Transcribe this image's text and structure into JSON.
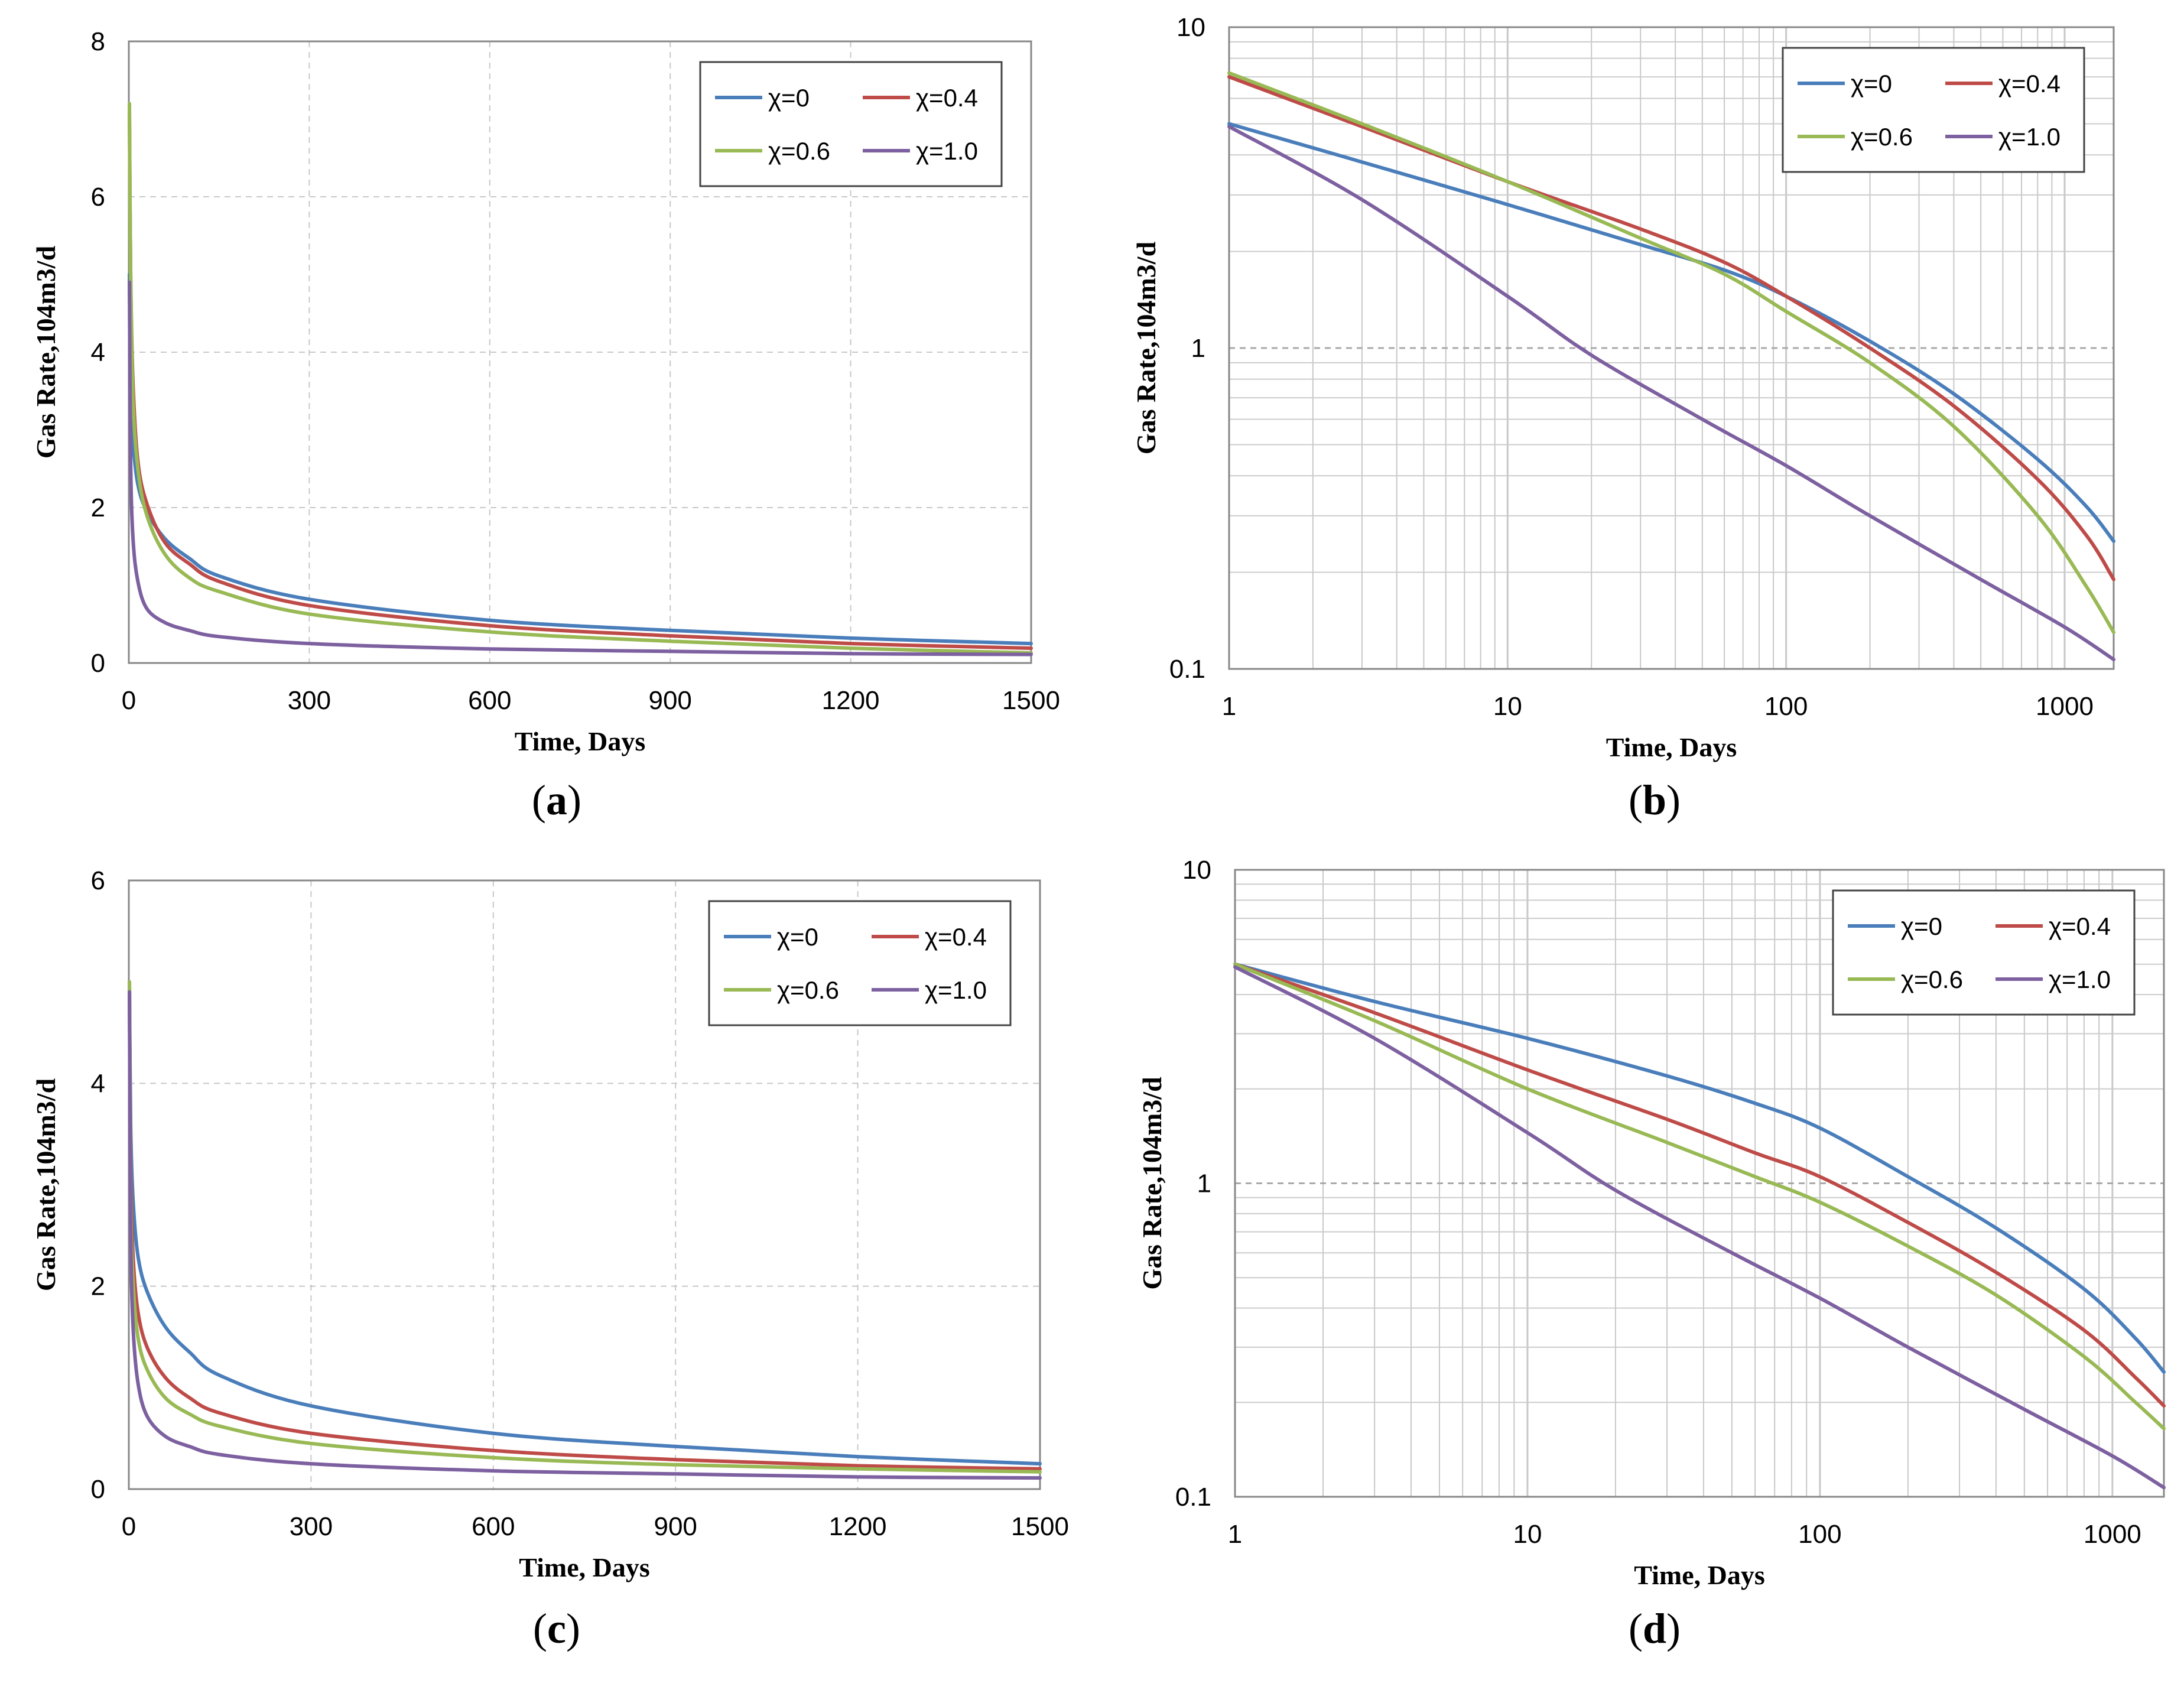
{
  "colors": {
    "s0": "#4a7ebb",
    "s1": "#be4b48",
    "s2": "#98b954",
    "s3": "#7d60a0"
  },
  "chart_data": [
    {
      "id": "a",
      "type": "line",
      "xscale": "linear",
      "yscale": "linear",
      "caption_letter": "a",
      "xlabel": "Time, Days",
      "ylabel": "Gas Rate,104m3/d",
      "xlim": [
        0,
        1500
      ],
      "ylim": [
        0,
        8
      ],
      "xticks": [
        0,
        300,
        600,
        900,
        1200,
        1500
      ],
      "xtick_labels": [
        "0",
        "300",
        "600",
        "900",
        "1200",
        "1500"
      ],
      "yticks": [
        0,
        2,
        4,
        6,
        8
      ],
      "ytick_labels": [
        "0",
        "2",
        "4",
        "6",
        "8"
      ],
      "legend_position": "top-right",
      "series": [
        {
          "name": "χ=0",
          "x": [
            1,
            3,
            7,
            15,
            30,
            60,
            100,
            150,
            300,
            600,
            900,
            1200,
            1500
          ],
          "values": [
            5.0,
            3.6,
            2.85,
            2.3,
            1.95,
            1.6,
            1.35,
            1.12,
            0.82,
            0.55,
            0.42,
            0.32,
            0.25
          ]
        },
        {
          "name": "χ=0.4",
          "x": [
            1,
            3,
            7,
            15,
            30,
            60,
            100,
            150,
            300,
            600,
            900,
            1200,
            1500
          ],
          "values": [
            7.1,
            5.0,
            3.6,
            2.6,
            2.05,
            1.55,
            1.28,
            1.05,
            0.74,
            0.48,
            0.35,
            0.25,
            0.19
          ]
        },
        {
          "name": "χ=0.6",
          "x": [
            1,
            3,
            7,
            15,
            30,
            60,
            100,
            150,
            300,
            600,
            900,
            1200,
            1500
          ],
          "values": [
            7.2,
            5.0,
            3.4,
            2.5,
            1.9,
            1.4,
            1.1,
            0.92,
            0.63,
            0.4,
            0.28,
            0.19,
            0.13
          ]
        },
        {
          "name": "χ=1.0",
          "x": [
            1,
            3,
            7,
            15,
            30,
            60,
            100,
            150,
            300,
            600,
            900,
            1200,
            1500
          ],
          "values": [
            4.9,
            2.6,
            1.6,
            1.05,
            0.7,
            0.52,
            0.42,
            0.34,
            0.25,
            0.18,
            0.15,
            0.12,
            0.11
          ]
        }
      ]
    },
    {
      "id": "b",
      "type": "line",
      "xscale": "log",
      "yscale": "log",
      "caption_letter": "b",
      "xlabel": "Time, Days",
      "ylabel": "Gas Rate,104m3/d",
      "xlim": [
        1,
        1500
      ],
      "ylim": [
        0.1,
        10
      ],
      "xticks": [
        1,
        10,
        100,
        1000
      ],
      "xtick_labels": [
        "1",
        "10",
        "100",
        "1000"
      ],
      "yticks": [
        0.1,
        1,
        10
      ],
      "ytick_labels": [
        "0.1",
        "1",
        "10"
      ],
      "legend_position": "top-right",
      "series": [
        {
          "name": "χ=0",
          "x": [
            1,
            3,
            10,
            30,
            60,
            100,
            200,
            400,
            800,
            1200,
            1500
          ],
          "values": [
            5.0,
            3.8,
            2.8,
            2.1,
            1.75,
            1.45,
            1.05,
            0.72,
            0.45,
            0.32,
            0.25
          ]
        },
        {
          "name": "χ=0.4",
          "x": [
            1,
            3,
            10,
            30,
            60,
            100,
            200,
            400,
            800,
            1200,
            1500
          ],
          "values": [
            7.0,
            4.9,
            3.3,
            2.35,
            1.85,
            1.45,
            1.0,
            0.66,
            0.39,
            0.26,
            0.19
          ]
        },
        {
          "name": "χ=0.6",
          "x": [
            1,
            3,
            10,
            30,
            60,
            100,
            200,
            400,
            800,
            1200,
            1500
          ],
          "values": [
            7.2,
            5.0,
            3.3,
            2.2,
            1.7,
            1.3,
            0.9,
            0.57,
            0.3,
            0.18,
            0.13
          ]
        },
        {
          "name": "χ=1.0",
          "x": [
            1,
            3,
            10,
            20,
            50,
            100,
            200,
            500,
            1000,
            1500
          ],
          "values": [
            4.9,
            2.9,
            1.45,
            0.95,
            0.6,
            0.43,
            0.3,
            0.19,
            0.135,
            0.107
          ]
        }
      ]
    },
    {
      "id": "c",
      "type": "line",
      "xscale": "linear",
      "yscale": "linear",
      "caption_letter": "c",
      "xlabel": "Time, Days",
      "ylabel": "Gas Rate,104m3/d",
      "xlim": [
        0,
        1500
      ],
      "ylim": [
        0,
        6
      ],
      "xticks": [
        0,
        300,
        600,
        900,
        1200,
        1500
      ],
      "xtick_labels": [
        "0",
        "300",
        "600",
        "900",
        "1200",
        "1500"
      ],
      "yticks": [
        0,
        2,
        4,
        6
      ],
      "ytick_labels": [
        "0",
        "2",
        "4",
        "6"
      ],
      "legend_position": "top-right",
      "series": [
        {
          "name": "χ=0",
          "x": [
            1,
            3,
            7,
            15,
            30,
            60,
            100,
            150,
            300,
            600,
            900,
            1200,
            1500
          ],
          "values": [
            5.0,
            3.6,
            2.85,
            2.3,
            1.95,
            1.6,
            1.35,
            1.12,
            0.82,
            0.55,
            0.42,
            0.32,
            0.25
          ]
        },
        {
          "name": "χ=0.4",
          "x": [
            1,
            3,
            7,
            15,
            30,
            60,
            100,
            150,
            300,
            600,
            900,
            1200,
            1500
          ],
          "values": [
            5.0,
            3.2,
            2.3,
            1.75,
            1.4,
            1.1,
            0.9,
            0.75,
            0.55,
            0.38,
            0.29,
            0.23,
            0.2
          ]
        },
        {
          "name": "χ=0.6",
          "x": [
            1,
            3,
            7,
            15,
            30,
            60,
            100,
            150,
            300,
            600,
            900,
            1200,
            1500
          ],
          "values": [
            5.0,
            2.9,
            2.05,
            1.5,
            1.18,
            0.9,
            0.74,
            0.62,
            0.45,
            0.31,
            0.24,
            0.2,
            0.17
          ]
        },
        {
          "name": "χ=1.0",
          "x": [
            1,
            3,
            7,
            15,
            30,
            60,
            100,
            150,
            300,
            600,
            900,
            1200,
            1500
          ],
          "values": [
            4.9,
            2.6,
            1.6,
            1.05,
            0.72,
            0.52,
            0.42,
            0.34,
            0.25,
            0.18,
            0.15,
            0.12,
            0.11
          ]
        }
      ]
    },
    {
      "id": "d",
      "type": "line",
      "xscale": "log",
      "yscale": "log",
      "caption_letter": "d",
      "xlabel": "Time, Days",
      "ylabel": "Gas Rate,104m3/d",
      "xlim": [
        1,
        1500
      ],
      "ylim": [
        0.1,
        10
      ],
      "xticks": [
        1,
        10,
        100,
        1000
      ],
      "xtick_labels": [
        "1",
        "10",
        "100",
        "1000"
      ],
      "yticks": [
        0.1,
        1,
        10
      ],
      "ytick_labels": [
        "0.1",
        "1",
        "10"
      ],
      "legend_position": "top-right",
      "series": [
        {
          "name": "χ=0",
          "x": [
            1,
            3,
            10,
            30,
            60,
            100,
            200,
            400,
            800,
            1200,
            1500
          ],
          "values": [
            5.0,
            3.8,
            2.9,
            2.2,
            1.8,
            1.5,
            1.05,
            0.72,
            0.46,
            0.32,
            0.25
          ]
        },
        {
          "name": "χ=0.4",
          "x": [
            1,
            3,
            10,
            30,
            60,
            100,
            200,
            400,
            800,
            1200,
            1500
          ],
          "values": [
            5.0,
            3.5,
            2.3,
            1.6,
            1.25,
            1.05,
            0.75,
            0.52,
            0.34,
            0.24,
            0.195
          ]
        },
        {
          "name": "χ=0.6",
          "x": [
            1,
            3,
            10,
            30,
            60,
            100,
            200,
            400,
            800,
            1200,
            1500
          ],
          "values": [
            5.0,
            3.3,
            2.0,
            1.35,
            1.05,
            0.87,
            0.63,
            0.44,
            0.28,
            0.2,
            0.165
          ]
        },
        {
          "name": "χ=1.0",
          "x": [
            1,
            3,
            10,
            20,
            50,
            100,
            200,
            500,
            1000,
            1500
          ],
          "values": [
            4.9,
            2.9,
            1.45,
            0.95,
            0.6,
            0.43,
            0.3,
            0.19,
            0.135,
            0.107
          ]
        }
      ]
    }
  ]
}
